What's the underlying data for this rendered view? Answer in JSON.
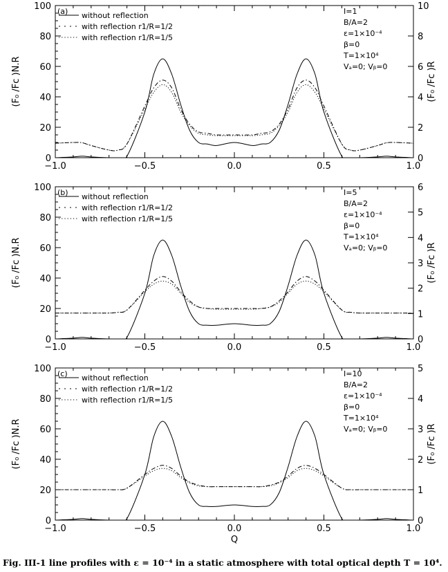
{
  "caption": "Fig. III-1 line profiles with ε = 10⁻⁴ in a static atmosphere with total optical depth T = 10⁴.",
  "chart_data": [
    {
      "type": "line",
      "panel_label": "(a)",
      "xlabel": "",
      "ylabel_left": "(F₀ /Fᴄ )N.R",
      "ylabel_right": "(F₀ /Fᴄ )R",
      "xlim": [
        -1.0,
        1.0
      ],
      "ylim_left": [
        0,
        100
      ],
      "ylim_right": [
        0,
        10
      ],
      "x_ticks": [
        "−1.0",
        "−0.5",
        "0.0",
        "0.5",
        "1.0"
      ],
      "y_ticks_left": [
        "0",
        "20",
        "40",
        "60",
        "80",
        "100"
      ],
      "y_ticks_right": [
        "0",
        "2",
        "4",
        "6",
        "8",
        "10"
      ],
      "legend": [
        "without reflection",
        "with reflection r1/R=1/2",
        "with reflection r1/R=1/5"
      ],
      "params": [
        "I=1",
        "B/A=2",
        "ε=1×10⁻⁴",
        "β=0",
        "T=1×10⁴",
        "Vₐ=0; Vᵦ=0"
      ],
      "x": [
        -1.0,
        -0.9,
        -0.85,
        -0.8,
        -0.7,
        -0.65,
        -0.6,
        -0.5,
        -0.45,
        -0.4,
        -0.35,
        -0.3,
        -0.25,
        -0.2,
        -0.15,
        -0.1,
        0.0,
        0.1,
        0.15,
        0.2,
        0.25,
        0.3,
        0.35,
        0.4,
        0.45,
        0.5,
        0.6,
        0.65,
        0.7,
        0.8,
        0.85,
        0.9,
        1.0
      ],
      "series": [
        {
          "name": "without reflection",
          "style": "solid",
          "values": [
            0,
            0.5,
            1,
            0.5,
            0,
            0,
            1,
            30,
            55,
            65,
            55,
            35,
            18,
            10,
            9,
            8,
            10,
            8,
            9,
            10,
            18,
            35,
            55,
            65,
            55,
            30,
            1,
            0,
            0,
            0.5,
            1,
            0.5,
            0
          ]
        },
        {
          "name": "with reflection r1/R=1/2",
          "style": "dashdot",
          "values": [
            9.5,
            10,
            9.8,
            8,
            5,
            5,
            9,
            34,
            46,
            51,
            46,
            32,
            22,
            17,
            16,
            15,
            15,
            15,
            16,
            17,
            22,
            32,
            46,
            51,
            46,
            34,
            9,
            5,
            5,
            8,
            9.8,
            10,
            9.5
          ]
        },
        {
          "name": "with reflection r1/R=1/5",
          "style": "dotted",
          "values": [
            9.5,
            10,
            9.8,
            8,
            5,
            5,
            9,
            32,
            43,
            48,
            43,
            30,
            21,
            16,
            15,
            14.5,
            14.5,
            14.5,
            15,
            16,
            21,
            30,
            43,
            48,
            43,
            32,
            9,
            5,
            5,
            8,
            9.8,
            10,
            9.5
          ]
        }
      ]
    },
    {
      "type": "line",
      "panel_label": "(b)",
      "xlabel": "",
      "ylabel_left": "(F₀ /Fᴄ )N.R",
      "ylabel_right": "(F₀ /Fᴄ )R",
      "xlim": [
        -1.0,
        1.0
      ],
      "ylim_left": [
        0,
        100
      ],
      "ylim_right": [
        0,
        6
      ],
      "x_ticks": [
        "−1.0",
        "−0.5",
        "0.0",
        "0.5",
        "1.0"
      ],
      "y_ticks_left": [
        "0",
        "20",
        "40",
        "60",
        "80",
        "100"
      ],
      "y_ticks_right": [
        "0",
        "1",
        "2",
        "3",
        "4",
        "5",
        "6"
      ],
      "legend": [
        "without reflection",
        "with reflection r1/R=1/2",
        "with reflection r1/R=1/5"
      ],
      "params": [
        "I=5",
        "B/A=2",
        "ε=1×10⁻⁴",
        "β=0",
        "T=1×10⁴",
        "Vₐ=0; Vᵦ=0"
      ],
      "x": [
        -1.0,
        -0.9,
        -0.85,
        -0.8,
        -0.7,
        -0.65,
        -0.6,
        -0.5,
        -0.45,
        -0.4,
        -0.35,
        -0.3,
        -0.25,
        -0.2,
        -0.15,
        -0.1,
        0.0,
        0.1,
        0.15,
        0.2,
        0.25,
        0.3,
        0.35,
        0.4,
        0.45,
        0.5,
        0.6,
        0.65,
        0.7,
        0.8,
        0.85,
        0.9,
        1.0
      ],
      "series": [
        {
          "name": "without reflection",
          "style": "solid",
          "values": [
            0,
            0.5,
            1,
            0.5,
            0,
            0,
            1,
            30,
            55,
            65,
            55,
            35,
            18,
            10,
            9,
            9,
            10,
            9,
            9,
            10,
            18,
            35,
            55,
            65,
            55,
            30,
            1,
            0,
            0,
            0.5,
            1,
            0.5,
            0
          ]
        },
        {
          "name": "with reflection r1/R=1/2",
          "style": "dashdot",
          "values": [
            17,
            17,
            17,
            17,
            17,
            17.5,
            19,
            32,
            38,
            41,
            38,
            31,
            25,
            21,
            20,
            20,
            20,
            20,
            20,
            21,
            25,
            31,
            38,
            41,
            38,
            32,
            19,
            17.5,
            17,
            17,
            17,
            17,
            17
          ]
        },
        {
          "name": "with reflection r1/R=1/5",
          "style": "dotted",
          "values": [
            17,
            17,
            17,
            17,
            17,
            17.5,
            19,
            31,
            36,
            38,
            36,
            30,
            24,
            21,
            20,
            19.5,
            19.5,
            19.5,
            20,
            21,
            24,
            30,
            36,
            38,
            36,
            31,
            19,
            17.5,
            17,
            17,
            17,
            17,
            17
          ]
        }
      ]
    },
    {
      "type": "line",
      "panel_label": "(c)",
      "xlabel": "Q",
      "ylabel_left": "(F₀ /Fᴄ )N.R",
      "ylabel_right": "(F₀ /Fᴄ )R",
      "xlim": [
        -1.0,
        1.0
      ],
      "ylim_left": [
        0,
        100
      ],
      "ylim_right": [
        0,
        5
      ],
      "x_ticks": [
        "−1.0",
        "−0.5",
        "0.0",
        "0.5",
        "1.0"
      ],
      "y_ticks_left": [
        "0",
        "20",
        "40",
        "60",
        "80",
        "100"
      ],
      "y_ticks_right": [
        "0",
        "1",
        "2",
        "3",
        "4",
        "5"
      ],
      "legend": [
        "without reflection",
        "with reflection r1/R=1/2",
        "with reflection r1/R=1/5"
      ],
      "params": [
        "I=10",
        "B/A=2",
        "ε=1×10⁻⁴",
        "β=0",
        "T=1×10⁴",
        "Vₐ=0; Vᵦ=0"
      ],
      "x": [
        -1.0,
        -0.9,
        -0.85,
        -0.8,
        -0.7,
        -0.65,
        -0.6,
        -0.5,
        -0.45,
        -0.4,
        -0.35,
        -0.3,
        -0.25,
        -0.2,
        -0.15,
        -0.1,
        0.0,
        0.1,
        0.15,
        0.2,
        0.25,
        0.3,
        0.35,
        0.4,
        0.45,
        0.5,
        0.6,
        0.65,
        0.7,
        0.8,
        0.85,
        0.9,
        1.0
      ],
      "series": [
        {
          "name": "without reflection",
          "style": "solid",
          "values": [
            0,
            0.5,
            1,
            0.5,
            0,
            0,
            1,
            30,
            55,
            65,
            55,
            35,
            18,
            10,
            9,
            9,
            10,
            9,
            9,
            10,
            18,
            35,
            55,
            65,
            55,
            30,
            1,
            0,
            0,
            0.5,
            1,
            0.5,
            0
          ]
        },
        {
          "name": "with reflection r1/R=1/2",
          "style": "dashdot",
          "values": [
            20,
            20,
            20,
            20,
            20,
            20,
            21,
            30,
            34,
            36,
            34,
            29,
            25,
            23,
            22,
            22,
            22,
            22,
            22,
            23,
            25,
            29,
            34,
            36,
            34,
            30,
            21,
            20,
            20,
            20,
            20,
            20,
            20
          ]
        },
        {
          "name": "with reflection r1/R=1/5",
          "style": "dotted",
          "values": [
            20,
            20,
            20,
            20,
            20,
            20,
            21,
            29,
            32.5,
            34,
            32.5,
            28,
            24.5,
            22.5,
            22,
            22,
            22,
            22,
            22,
            22.5,
            24.5,
            28,
            32.5,
            34,
            32.5,
            29,
            21,
            20,
            20,
            20,
            20,
            20,
            20
          ]
        }
      ]
    }
  ]
}
